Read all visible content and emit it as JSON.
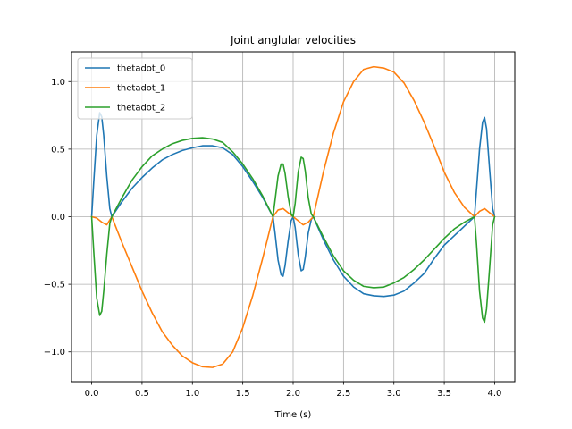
{
  "chart_data": {
    "type": "line",
    "title": "Joint anglular velocities",
    "xlabel": "Time (s)",
    "ylabel": "",
    "xlim": [
      -0.2,
      4.2
    ],
    "ylim": [
      -1.22,
      1.22
    ],
    "xticks": [
      0.0,
      0.5,
      1.0,
      1.5,
      2.0,
      2.5,
      3.0,
      3.5,
      4.0
    ],
    "xtick_labels": [
      "0.0",
      "0.5",
      "1.0",
      "1.5",
      "2.0",
      "2.5",
      "3.0",
      "3.5",
      "4.0"
    ],
    "yticks": [
      -1.0,
      -0.5,
      0.0,
      0.5,
      1.0
    ],
    "ytick_labels": [
      "−1.0",
      "−0.5",
      "0.0",
      "0.5",
      "1.0"
    ],
    "grid": true,
    "legend_position": "top-left",
    "series": [
      {
        "name": "thetadot_0",
        "color": "#1f77b4",
        "x": [
          0.0,
          0.02,
          0.05,
          0.08,
          0.1,
          0.12,
          0.15,
          0.18,
          0.2,
          0.3,
          0.4,
          0.5,
          0.6,
          0.7,
          0.8,
          0.9,
          1.0,
          1.1,
          1.2,
          1.3,
          1.4,
          1.5,
          1.6,
          1.7,
          1.8,
          1.82,
          1.85,
          1.88,
          1.9,
          1.92,
          1.95,
          1.98,
          2.0,
          2.02,
          2.05,
          2.08,
          2.1,
          2.12,
          2.15,
          2.18,
          2.2,
          2.3,
          2.4,
          2.5,
          2.6,
          2.7,
          2.8,
          2.9,
          3.0,
          3.1,
          3.2,
          3.3,
          3.4,
          3.5,
          3.6,
          3.7,
          3.8,
          3.82,
          3.85,
          3.88,
          3.9,
          3.92,
          3.95,
          3.98,
          4.0
        ],
        "y": [
          0.0,
          0.25,
          0.6,
          0.77,
          0.74,
          0.6,
          0.3,
          0.06,
          0.0,
          0.11,
          0.21,
          0.29,
          0.36,
          0.42,
          0.46,
          0.49,
          0.51,
          0.525,
          0.525,
          0.51,
          0.46,
          0.37,
          0.26,
          0.14,
          0.0,
          -0.12,
          -0.32,
          -0.43,
          -0.44,
          -0.36,
          -0.18,
          -0.03,
          0.0,
          -0.08,
          -0.28,
          -0.4,
          -0.39,
          -0.3,
          -0.12,
          -0.02,
          0.0,
          -0.17,
          -0.32,
          -0.44,
          -0.52,
          -0.57,
          -0.585,
          -0.59,
          -0.58,
          -0.55,
          -0.49,
          -0.42,
          -0.31,
          -0.21,
          -0.14,
          -0.07,
          0.0,
          0.2,
          0.5,
          0.7,
          0.735,
          0.65,
          0.35,
          0.06,
          0.0
        ]
      },
      {
        "name": "thetadot_1",
        "color": "#ff7f0e",
        "x": [
          0.0,
          0.05,
          0.1,
          0.15,
          0.2,
          0.3,
          0.4,
          0.5,
          0.6,
          0.7,
          0.8,
          0.9,
          1.0,
          1.1,
          1.2,
          1.3,
          1.4,
          1.5,
          1.6,
          1.7,
          1.8,
          1.85,
          1.9,
          1.95,
          2.0,
          2.05,
          2.1,
          2.15,
          2.2,
          2.3,
          2.4,
          2.5,
          2.6,
          2.7,
          2.8,
          2.9,
          3.0,
          3.1,
          3.2,
          3.3,
          3.4,
          3.5,
          3.6,
          3.7,
          3.8,
          3.85,
          3.9,
          3.95,
          4.0
        ],
        "y": [
          0.0,
          -0.01,
          -0.04,
          -0.06,
          0.0,
          -0.19,
          -0.37,
          -0.55,
          -0.71,
          -0.85,
          -0.95,
          -1.03,
          -1.08,
          -1.11,
          -1.115,
          -1.09,
          -1.0,
          -0.82,
          -0.58,
          -0.3,
          0.0,
          0.05,
          0.06,
          0.03,
          0.0,
          -0.03,
          -0.06,
          -0.04,
          0.0,
          0.33,
          0.62,
          0.85,
          1.0,
          1.09,
          1.11,
          1.1,
          1.07,
          0.99,
          0.86,
          0.7,
          0.52,
          0.33,
          0.18,
          0.07,
          0.0,
          0.04,
          0.06,
          0.03,
          0.0
        ]
      },
      {
        "name": "thetadot_2",
        "color": "#2ca02c",
        "x": [
          0.0,
          0.02,
          0.05,
          0.08,
          0.1,
          0.12,
          0.15,
          0.18,
          0.2,
          0.3,
          0.4,
          0.5,
          0.6,
          0.7,
          0.8,
          0.9,
          1.0,
          1.1,
          1.2,
          1.3,
          1.4,
          1.5,
          1.6,
          1.7,
          1.8,
          1.82,
          1.85,
          1.88,
          1.9,
          1.92,
          1.95,
          1.98,
          2.0,
          2.02,
          2.05,
          2.08,
          2.1,
          2.12,
          2.15,
          2.18,
          2.2,
          2.3,
          2.4,
          2.5,
          2.6,
          2.7,
          2.8,
          2.9,
          3.0,
          3.1,
          3.2,
          3.3,
          3.4,
          3.5,
          3.6,
          3.7,
          3.8,
          3.82,
          3.85,
          3.88,
          3.9,
          3.92,
          3.95,
          3.98,
          4.0
        ],
        "y": [
          0.0,
          -0.25,
          -0.6,
          -0.73,
          -0.7,
          -0.55,
          -0.28,
          -0.05,
          0.0,
          0.14,
          0.27,
          0.37,
          0.45,
          0.5,
          0.54,
          0.565,
          0.58,
          0.585,
          0.575,
          0.55,
          0.48,
          0.39,
          0.28,
          0.15,
          0.0,
          0.12,
          0.3,
          0.39,
          0.39,
          0.32,
          0.15,
          0.02,
          0.0,
          0.1,
          0.33,
          0.44,
          0.43,
          0.34,
          0.14,
          0.02,
          0.0,
          -0.15,
          -0.29,
          -0.4,
          -0.47,
          -0.515,
          -0.525,
          -0.52,
          -0.49,
          -0.45,
          -0.39,
          -0.32,
          -0.24,
          -0.16,
          -0.09,
          -0.04,
          0.0,
          -0.2,
          -0.55,
          -0.75,
          -0.78,
          -0.68,
          -0.38,
          -0.06,
          0.0
        ]
      }
    ]
  }
}
